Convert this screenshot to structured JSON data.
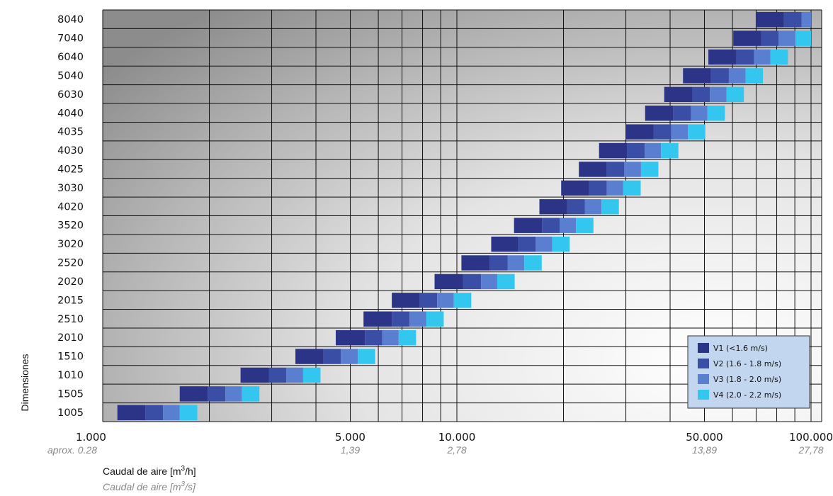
{
  "chart_data": {
    "type": "bar",
    "orientation": "horizontal",
    "xscale": "log",
    "xlim": [
      1000,
      105000
    ],
    "grid": true,
    "legend_position": "bottom-right",
    "categories": [
      "1005",
      "1505",
      "1010",
      "1510",
      "2010",
      "2510",
      "2015",
      "2020",
      "2520",
      "3020",
      "3520",
      "4020",
      "3030",
      "4025",
      "4030",
      "4035",
      "4040",
      "6030",
      "5040",
      "6040",
      "7040",
      "8040"
    ],
    "series": [
      {
        "name": "V1 (<1.6 m/s)",
        "color": "#2b3487",
        "values": [
          [
            1100,
            1320
          ],
          [
            1650,
            1980
          ],
          [
            2450,
            2950
          ],
          [
            3500,
            4200
          ],
          [
            4550,
            5500
          ],
          [
            5450,
            6550
          ],
          [
            6550,
            7850
          ],
          [
            8650,
            10400
          ],
          [
            10300,
            12400
          ],
          [
            12500,
            14900
          ],
          [
            14500,
            17400
          ],
          [
            17100,
            20500
          ],
          [
            19700,
            23600
          ],
          [
            22100,
            26500
          ],
          [
            25200,
            30300
          ],
          [
            30000,
            35900
          ],
          [
            34000,
            40800
          ],
          [
            38500,
            46300
          ],
          [
            43500,
            52200
          ],
          [
            51300,
            61600
          ],
          [
            60300,
            72300
          ],
          [
            69800,
            83800
          ]
        ]
      },
      {
        "name": "V2 (1.6 - 1.8 m/s)",
        "color": "#3a4ea6",
        "values": [
          [
            1320,
            1480
          ],
          [
            1980,
            2220
          ],
          [
            2950,
            3300
          ],
          [
            4200,
            4700
          ],
          [
            5500,
            6150
          ],
          [
            6550,
            7350
          ],
          [
            7850,
            8800
          ],
          [
            10400,
            11700
          ],
          [
            12400,
            13900
          ],
          [
            14900,
            16700
          ],
          [
            17400,
            19500
          ],
          [
            20500,
            23000
          ],
          [
            23600,
            26500
          ],
          [
            26500,
            29700
          ],
          [
            30300,
            33900
          ],
          [
            35900,
            40300
          ],
          [
            40800,
            45800
          ],
          [
            46300,
            51800
          ],
          [
            52200,
            58600
          ],
          [
            61600,
            69000
          ],
          [
            72300,
            81000
          ],
          [
            83800,
            94000
          ]
        ]
      },
      {
        "name": "V3 (1.8 - 2.0 m/s)",
        "color": "#5a7ed0",
        "values": [
          [
            1480,
            1650
          ],
          [
            2220,
            2470
          ],
          [
            3300,
            3680
          ],
          [
            4700,
            5250
          ],
          [
            6150,
            6850
          ],
          [
            7350,
            8200
          ],
          [
            8800,
            9800
          ],
          [
            11700,
            13000
          ],
          [
            13900,
            15500
          ],
          [
            16700,
            18600
          ],
          [
            19500,
            21700
          ],
          [
            23000,
            25600
          ],
          [
            26500,
            29500
          ],
          [
            29700,
            33100
          ],
          [
            33900,
            37700
          ],
          [
            40300,
            44900
          ],
          [
            45800,
            51000
          ],
          [
            51800,
            57700
          ],
          [
            58600,
            65300
          ],
          [
            69000,
            76800
          ],
          [
            81000,
            90300
          ],
          [
            94000,
            104000
          ]
        ]
      },
      {
        "name": "V4 (2.0 - 2.2 m/s)",
        "color": "#33c7f0",
        "values": [
          [
            1650,
            1850
          ],
          [
            2470,
            2770
          ],
          [
            3680,
            4120
          ],
          [
            5250,
            5880
          ],
          [
            6850,
            7670
          ],
          [
            8200,
            9180
          ],
          [
            9800,
            10980
          ],
          [
            13000,
            14560
          ],
          [
            15500,
            17360
          ],
          [
            18600,
            20830
          ],
          [
            21700,
            24300
          ],
          [
            25600,
            28670
          ],
          [
            29500,
            33040
          ],
          [
            33100,
            37070
          ],
          [
            37700,
            42220
          ],
          [
            44900,
            50290
          ],
          [
            51000,
            57120
          ],
          [
            57700,
            64620
          ],
          [
            65300,
            73140
          ],
          [
            76800,
            86020
          ],
          [
            90300,
            101100
          ],
          [
            104000,
            116500
          ]
        ]
      }
    ],
    "x_ticks": [
      {
        "value": 1000,
        "label": "1.000",
        "sublabel": "aprox. 0.28"
      },
      {
        "value": 5000,
        "label": "5.000",
        "sublabel": "1,39"
      },
      {
        "value": 10000,
        "label": "10.000",
        "sublabel": "2,78"
      },
      {
        "value": 50000,
        "label": "50.000",
        "sublabel": "13,89"
      },
      {
        "value": 100000,
        "label": "100.000",
        "sublabel": "27,78"
      }
    ],
    "ylabel": "Dimensiones",
    "xlabel": "Caudal de aire [m³/h]",
    "xlabel2": "Caudal de aire [m³/s]"
  }
}
